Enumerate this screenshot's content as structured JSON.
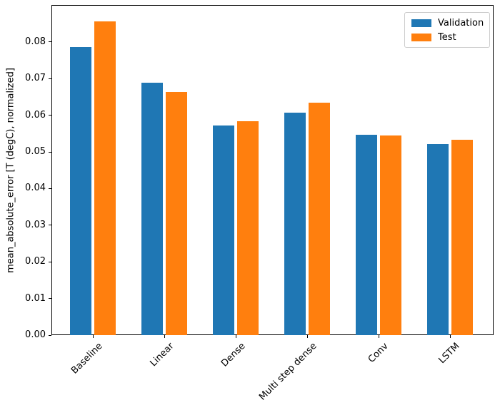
{
  "figure": {
    "background": "#ffffff",
    "text_color": "#000000"
  },
  "chart_data": {
    "type": "bar",
    "title": "",
    "xlabel": "",
    "ylabel": "mean_absolute_error [T (degC), normalized]",
    "categories": [
      "Baseline",
      "Linear",
      "Dense",
      "Multi step dense",
      "Conv",
      "LSTM"
    ],
    "series": [
      {
        "name": "Validation",
        "color": "#1f77b4",
        "values": [
          0.0786,
          0.0688,
          0.0572,
          0.0607,
          0.0546,
          0.0521
        ]
      },
      {
        "name": "Test",
        "color": "#ff7f0e",
        "values": [
          0.0856,
          0.0663,
          0.0584,
          0.0634,
          0.0544,
          0.0533
        ]
      }
    ],
    "ylim": [
      0,
      0.0901
    ],
    "yticks": [
      0.0,
      0.01,
      0.02,
      0.03,
      0.04,
      0.05,
      0.06,
      0.07,
      0.08
    ],
    "ytick_labels": [
      "0.00",
      "0.01",
      "0.02",
      "0.03",
      "0.04",
      "0.05",
      "0.06",
      "0.07",
      "0.08"
    ],
    "x_tick_rotation_deg": 45,
    "grid": false,
    "legend_position": "upper right"
  }
}
